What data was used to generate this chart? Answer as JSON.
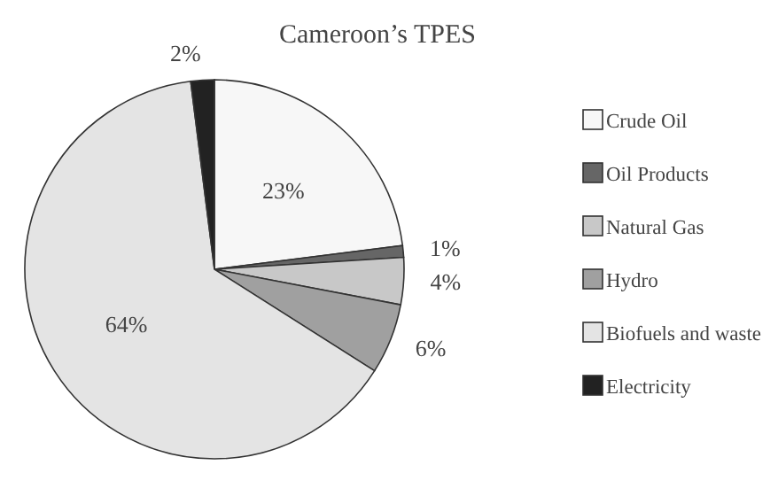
{
  "chart_data": {
    "type": "pie",
    "title": "Cameroon’s TPES",
    "categories": [
      "Crude Oil",
      "Oil Products",
      "Natural Gas",
      "Hydro",
      "Biofuels and waste",
      "Electricity"
    ],
    "values": [
      23,
      1,
      4,
      6,
      64,
      2
    ],
    "colors": [
      "#f7f7f7",
      "#666666",
      "#c8c8c8",
      "#a0a0a0",
      "#e4e4e4",
      "#222222"
    ],
    "value_labels": [
      "23%",
      "1%",
      "4%",
      "6%",
      "64%",
      "2%"
    ],
    "legend": "right"
  }
}
